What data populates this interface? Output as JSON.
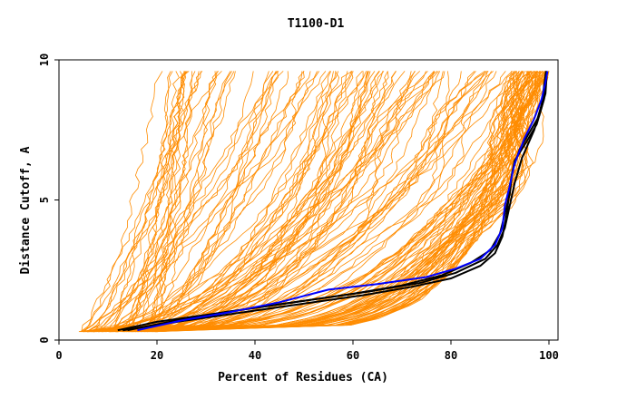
{
  "chart_data": {
    "type": "line",
    "title": "T1100-D1",
    "xlabel": "Percent of Residues (CA)",
    "ylabel": "Distance Cutoff, A",
    "xlim": [
      0,
      100
    ],
    "ylim": [
      0,
      10
    ],
    "x_ticks": [
      "0",
      "20",
      "40",
      "60",
      "80",
      "100"
    ],
    "y_ticks": [
      "0",
      "5",
      "10"
    ],
    "grid": false,
    "colors": {
      "background_models": "#ff8c00",
      "highlight_black": "#000000",
      "highlight_blue": "#0000ff",
      "frame": "#000000"
    },
    "series": [
      {
        "role": "highlight-black",
        "x": [
          12,
          20,
          30,
          40,
          50,
          60,
          70,
          78,
          84,
          88,
          90,
          91,
          92,
          92.5,
          94,
          96,
          98,
          99.3,
          99.6
        ],
        "y": [
          0.35,
          0.65,
          0.9,
          1.15,
          1.4,
          1.65,
          1.95,
          2.3,
          2.75,
          3.2,
          3.8,
          4.5,
          5.2,
          6.0,
          6.8,
          7.4,
          8.0,
          8.8,
          9.6
        ]
      },
      {
        "role": "highlight-black",
        "x": [
          13,
          22,
          32,
          42,
          52,
          62,
          72,
          80,
          86,
          89,
          90.5,
          91.5,
          92,
          93,
          95.5,
          97.5,
          99,
          99.5
        ],
        "y": [
          0.35,
          0.6,
          0.85,
          1.1,
          1.35,
          1.6,
          1.9,
          2.2,
          2.65,
          3.1,
          3.7,
          4.6,
          5.5,
          6.4,
          7.1,
          7.7,
          8.6,
          9.6
        ]
      },
      {
        "role": "highlight-black",
        "x": [
          14,
          24,
          34,
          44,
          54,
          64,
          74,
          81,
          87,
          89.5,
          91,
          92,
          93,
          94.5,
          97,
          98.5,
          99.4
        ],
        "y": [
          0.35,
          0.7,
          1.0,
          1.25,
          1.5,
          1.75,
          2.05,
          2.4,
          2.9,
          3.4,
          4.0,
          4.8,
          5.6,
          6.5,
          7.5,
          8.4,
          9.6
        ]
      },
      {
        "role": "highlight-blue",
        "x": [
          16,
          25,
          35,
          45,
          55,
          65,
          75,
          81,
          86,
          89,
          90.5,
          91,
          92,
          93,
          95,
          97,
          98.5,
          99.3,
          99.7
        ],
        "y": [
          0.35,
          0.7,
          1.0,
          1.35,
          1.8,
          2.0,
          2.25,
          2.55,
          2.9,
          3.4,
          4.0,
          4.8,
          5.5,
          6.3,
          7.2,
          7.9,
          8.6,
          9.2,
          9.6
        ]
      }
    ],
    "background_models": {
      "count": 160,
      "x_start_range": [
        4,
        20
      ],
      "y_start": 0.3,
      "y_end": 9.6
    }
  }
}
